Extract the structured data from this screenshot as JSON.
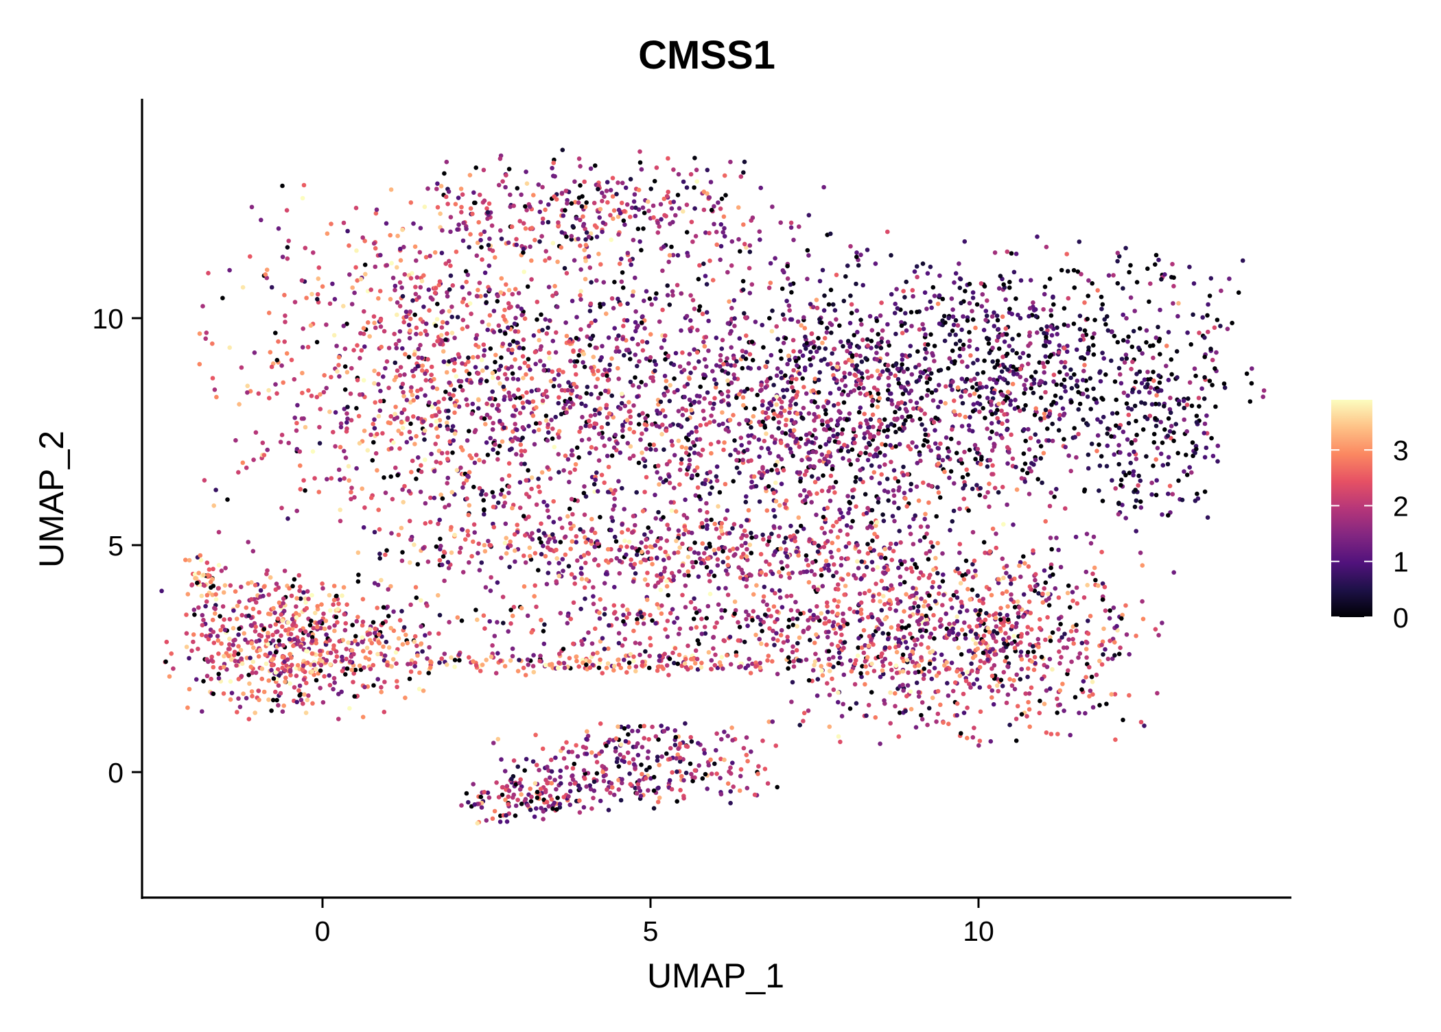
{
  "chart_data": {
    "type": "scatter",
    "title": "CMSS1",
    "xlabel": "UMAP_1",
    "ylabel": "UMAP_2",
    "xlim": [
      -2.8,
      14.8
    ],
    "ylim": [
      -2.8,
      14.8
    ],
    "x_ticks": [
      0,
      5,
      10
    ],
    "y_ticks": [
      0,
      5,
      10
    ],
    "x_tick_labels": [
      "0",
      "5",
      "10"
    ],
    "y_tick_labels": [
      "0",
      "5",
      "10"
    ],
    "color_scale": {
      "name": "magma",
      "min": 0,
      "max": 3.9,
      "ticks": [
        0,
        1,
        2,
        3
      ],
      "tick_labels": [
        "0",
        "1",
        "2",
        "3"
      ],
      "stops": [
        "#000004",
        "#1d1147",
        "#51127c",
        "#822681",
        "#b63679",
        "#e65164",
        "#fb8861",
        "#fec287",
        "#fcfdbf"
      ]
    },
    "clusters": [
      {
        "name": "main-left-lobe",
        "center": [
          1.6,
          8.8
        ],
        "spread": [
          1.6,
          1.9
        ],
        "count": 900,
        "mean_expr": 2.2
      },
      {
        "name": "main-top-arc",
        "center": [
          4.2,
          12.4
        ],
        "spread": [
          1.5,
          0.6
        ],
        "count": 320,
        "mean_expr": 1.8
      },
      {
        "name": "main-center",
        "center": [
          5.0,
          8.0
        ],
        "spread": [
          1.8,
          1.8
        ],
        "count": 1100,
        "mean_expr": 1.5
      },
      {
        "name": "main-right-upper",
        "center": [
          10.2,
          9.0
        ],
        "spread": [
          1.9,
          1.3
        ],
        "count": 950,
        "mean_expr": 0.8
      },
      {
        "name": "main-right-mid",
        "center": [
          8.3,
          7.2
        ],
        "spread": [
          1.4,
          1.3
        ],
        "count": 650,
        "mean_expr": 1.6
      },
      {
        "name": "main-right-tip",
        "center": [
          12.6,
          7.4
        ],
        "spread": [
          0.5,
          1.1
        ],
        "count": 160,
        "mean_expr": 0.6
      },
      {
        "name": "lower-right-mass",
        "center": [
          9.8,
          3.0
        ],
        "spread": [
          1.4,
          1.1
        ],
        "count": 850,
        "mean_expr": 2.0
      },
      {
        "name": "lower-band",
        "center": [
          5.2,
          4.8
        ],
        "spread": [
          2.2,
          0.35
        ],
        "count": 380,
        "mean_expr": 2.0
      },
      {
        "name": "lower-arcs",
        "center": [
          6.2,
          3.3
        ],
        "spread": [
          2.5,
          0.45
        ],
        "count": 380,
        "mean_expr": 1.8
      },
      {
        "name": "left-island",
        "center": [
          -0.4,
          2.8
        ],
        "spread": [
          0.95,
          0.75
        ],
        "count": 620,
        "mean_expr": 2.4
      },
      {
        "name": "left-tail",
        "center": [
          -1.8,
          4.3
        ],
        "spread": [
          0.15,
          0.25
        ],
        "count": 40,
        "mean_expr": 2.5
      },
      {
        "name": "bridge-strand",
        "center": [
          4.0,
          2.4
        ],
        "spread": [
          2.6,
          0.12
        ],
        "count": 250,
        "mean_expr": 2.6
      },
      {
        "name": "bottom-island",
        "center": [
          4.8,
          0.1
        ],
        "spread": [
          1.0,
          0.45
        ],
        "count": 300,
        "mean_expr": 1.6
      },
      {
        "name": "bottom-island-tail",
        "center": [
          3.1,
          -0.6
        ],
        "spread": [
          0.45,
          0.25
        ],
        "count": 110,
        "mean_expr": 1.9
      }
    ]
  }
}
